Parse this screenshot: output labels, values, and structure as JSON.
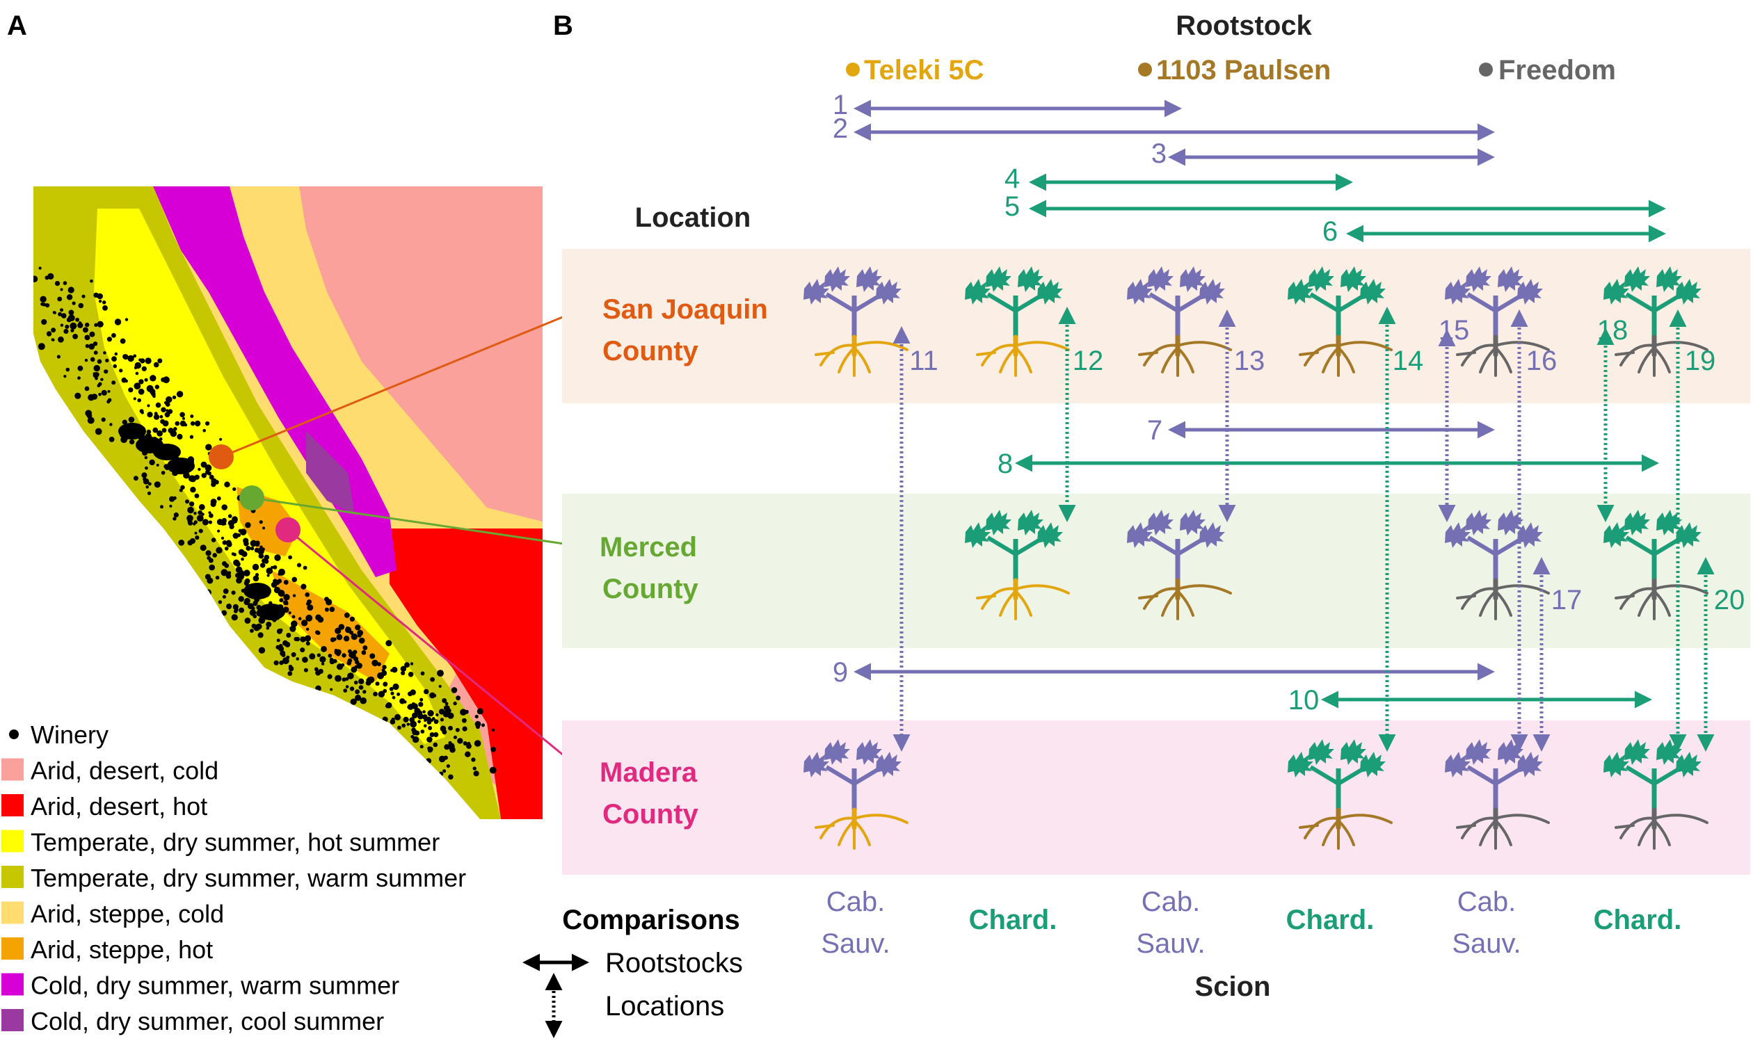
{
  "panel_a": {
    "letter": "A",
    "legend": [
      {
        "key": "winery",
        "label": "Winery",
        "color": "#000000",
        "shape": "dot"
      },
      {
        "key": "bwk",
        "label": "Arid, desert, cold",
        "color": "#f9a19a"
      },
      {
        "key": "bwh",
        "label": "Arid, desert, hot",
        "color": "#ff0000"
      },
      {
        "key": "csa",
        "label": "Temperate, dry summer, hot summer",
        "color": "#ffff00"
      },
      {
        "key": "csb",
        "label": "Temperate, dry summer, warm summer",
        "color": "#c6c700"
      },
      {
        "key": "bsk",
        "label": "Arid, steppe, cold",
        "color": "#ffdc6f"
      },
      {
        "key": "bsh",
        "label": "Arid, steppe, hot",
        "color": "#f5a300"
      },
      {
        "key": "dsb",
        "label": "Cold, dry summer, warm summer",
        "color": "#d600d6"
      },
      {
        "key": "dsc",
        "label": "Cold, dry summer, cool summer",
        "color": "#9a3aa0"
      }
    ],
    "map_markers": [
      {
        "key": "sj",
        "color": "#e05a12"
      },
      {
        "key": "me",
        "color": "#66a832"
      },
      {
        "key": "ma",
        "color": "#e0297f"
      }
    ]
  },
  "panel_b": {
    "letter": "B",
    "rootstock_title": "Rootstock",
    "rootstocks": [
      {
        "name": "Teleki 5C",
        "color": "#e3a60f"
      },
      {
        "name": "1103 Paulsen",
        "color": "#a57826"
      },
      {
        "name": "Freedom",
        "color": "#666666"
      }
    ],
    "location_title": "Location",
    "locations": [
      {
        "key": "sj",
        "line1": "San Joaquin",
        "line2": "County",
        "color": "#e05a12",
        "band": "#fbeee4"
      },
      {
        "key": "me",
        "line1": "Merced",
        "line2": "County",
        "color": "#66a832",
        "band": "#eef4e6"
      },
      {
        "key": "ma",
        "line1": "Madera",
        "line2": "County",
        "color": "#e0297f",
        "band": "#fbe5f0"
      }
    ],
    "scion_title": "Scion",
    "scions": [
      {
        "line1": "Cab.",
        "line2": "Sauv.",
        "color": "#7570b3"
      },
      {
        "line1": "Chard.",
        "line2": "",
        "color": "#1b9e77"
      },
      {
        "line1": "Cab.",
        "line2": "Sauv.",
        "color": "#7570b3"
      },
      {
        "line1": "Chard.",
        "line2": "",
        "color": "#1b9e77"
      },
      {
        "line1": "Cab.",
        "line2": "Sauv.",
        "color": "#7570b3"
      },
      {
        "line1": "Chard.",
        "line2": "",
        "color": "#1b9e77"
      }
    ],
    "colors": {
      "cab": "#7570b3",
      "chard": "#1b9e77"
    },
    "rootstock_comparisons": [
      {
        "n": "1",
        "scion": "cab"
      },
      {
        "n": "2",
        "scion": "cab"
      },
      {
        "n": "3",
        "scion": "cab"
      },
      {
        "n": "4",
        "scion": "chard"
      },
      {
        "n": "5",
        "scion": "chard"
      },
      {
        "n": "6",
        "scion": "chard"
      },
      {
        "n": "7",
        "scion": "cab"
      },
      {
        "n": "8",
        "scion": "chard"
      },
      {
        "n": "9",
        "scion": "cab"
      },
      {
        "n": "10",
        "scion": "chard"
      }
    ],
    "location_comparisons": [
      {
        "n": "11",
        "scion": "cab"
      },
      {
        "n": "12",
        "scion": "chard"
      },
      {
        "n": "13",
        "scion": "cab"
      },
      {
        "n": "14",
        "scion": "chard"
      },
      {
        "n": "15",
        "scion": "cab"
      },
      {
        "n": "16",
        "scion": "cab"
      },
      {
        "n": "17",
        "scion": "cab"
      },
      {
        "n": "18",
        "scion": "chard"
      },
      {
        "n": "19",
        "scion": "chard"
      },
      {
        "n": "20",
        "scion": "chard"
      }
    ],
    "comparisons_legend": {
      "title": "Comparisons",
      "rootstocks_label": "Rootstocks",
      "locations_label": "Locations"
    }
  }
}
